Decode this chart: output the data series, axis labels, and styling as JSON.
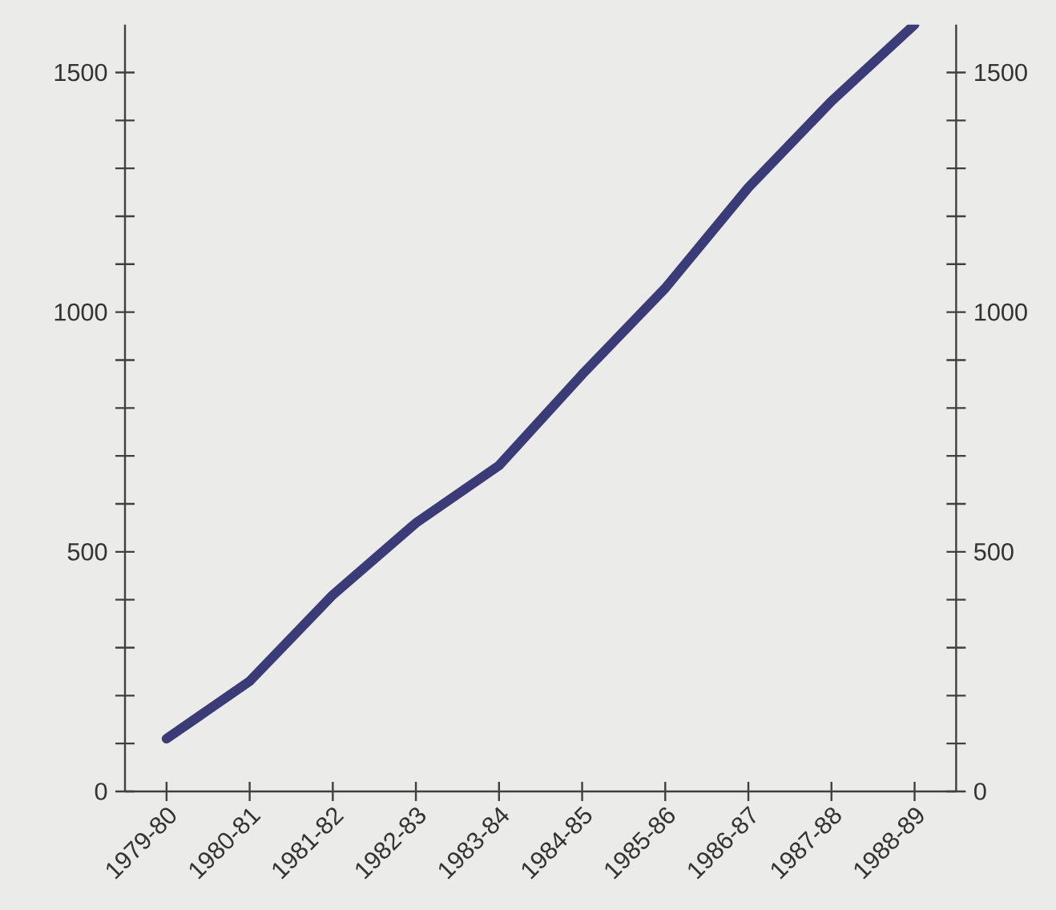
{
  "chart_data": {
    "type": "line",
    "categories": [
      "1979-80",
      "1980-81",
      "1981-82",
      "1982-83",
      "1983-84",
      "1984-85",
      "1985-86",
      "1986-87",
      "1987-88",
      "1988-89"
    ],
    "series": [
      {
        "color": "#3b3b78",
        "values": [
          110,
          230,
          410,
          560,
          680,
          870,
          1050,
          1260,
          1440,
          1600
        ]
      }
    ],
    "ylim": [
      0,
      1600
    ],
    "yticks": [
      0,
      {
        "value": 100,
        "label": null
      },
      {
        "value": 200,
        "label": null
      },
      {
        "value": 300,
        "label": null
      },
      {
        "value": 400,
        "label": null
      },
      500,
      {
        "value": 600,
        "label": null
      },
      {
        "value": 700,
        "label": null
      },
      {
        "value": 800,
        "label": null
      },
      {
        "value": 900,
        "label": null
      },
      1000,
      {
        "value": 1100,
        "label": null
      },
      {
        "value": 1200,
        "label": null
      },
      {
        "value": 1300,
        "label": null
      },
      {
        "value": 1400,
        "label": null
      },
      1500
    ],
    "y2lim": [
      0,
      1600
    ],
    "y2ticks": [
      0,
      {
        "value": 100,
        "label": null
      },
      {
        "value": 200,
        "label": null
      },
      {
        "value": 300,
        "label": null
      },
      {
        "value": 400,
        "label": null
      },
      500,
      {
        "value": 600,
        "label": null
      },
      {
        "value": 700,
        "label": null
      },
      {
        "value": 800,
        "label": null
      },
      {
        "value": 900,
        "label": null
      },
      1000,
      {
        "value": 1100,
        "label": null
      },
      {
        "value": 1200,
        "label": null
      },
      {
        "value": 1300,
        "label": null
      },
      {
        "value": 1400,
        "label": null
      },
      1500
    ],
    "grid": false,
    "legend": false,
    "marker": "none",
    "line_style": "solid"
  }
}
